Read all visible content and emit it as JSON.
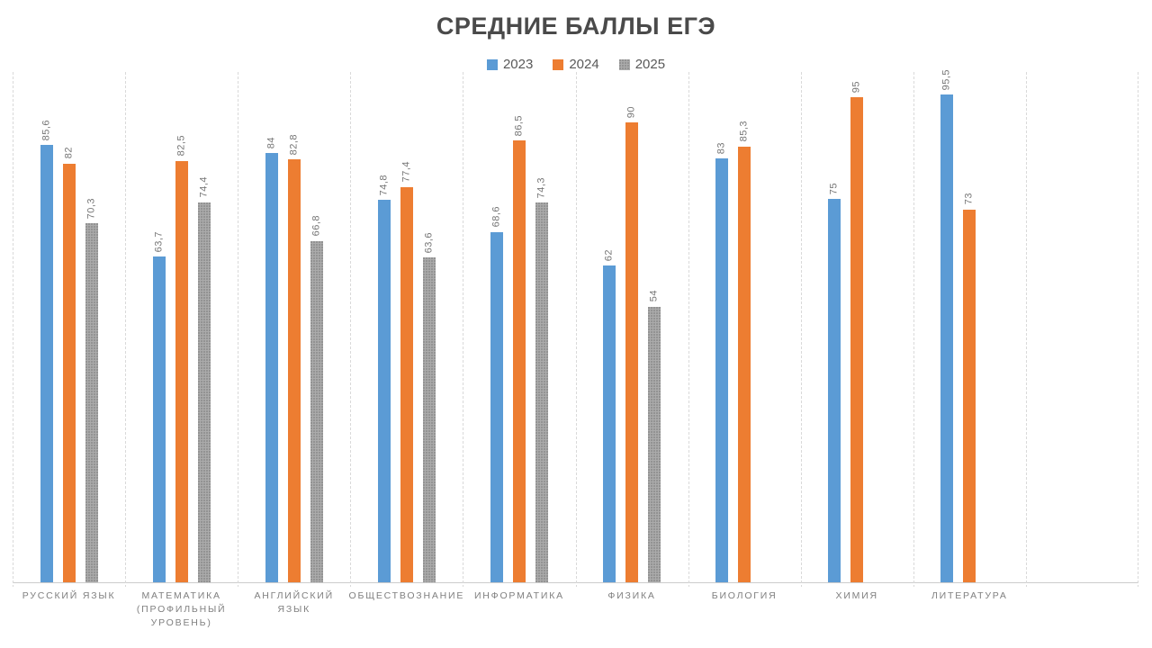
{
  "title": "СРЕДНИЕ БАЛЛЫ ЕГЭ",
  "legend": {
    "position": "top",
    "items": [
      "2023",
      "2024",
      "2025"
    ]
  },
  "colors": {
    "series_2023": "#5B9BD5",
    "series_2024": "#ED7D31",
    "series_2025": "#A5A5A5",
    "gridline": "#D9D9D9",
    "axis_line": "#CCCCCC",
    "title_text": "#4A4A4A",
    "value_label_text": "#767676",
    "category_label_text": "#808080"
  },
  "chart_data": {
    "type": "bar",
    "title": "СРЕДНИЕ БАЛЛЫ ЕГЭ",
    "xlabel": "",
    "ylabel": "",
    "ylim": [
      0,
      100
    ],
    "grid": "vertical-dashed",
    "legend_position": "top",
    "value_labels_shown": true,
    "value_label_decimal_separator": ",",
    "trailing_empty_slots": 1,
    "categories": [
      "РУССКИЙ ЯЗЫК",
      "МАТЕМАТИКА (ПРОФИЛЬНЫЙ УРОВЕНЬ)",
      "АНГЛИЙСКИЙ ЯЗЫК",
      "ОБЩЕСТВОЗНАНИЕ",
      "ИНФОРМАТИКА",
      "ФИЗИКА",
      "БИОЛОГИЯ",
      "ХИМИЯ",
      "ЛИТЕРАТУРА"
    ],
    "category_lines": [
      [
        "РУССКИЙ ЯЗЫК"
      ],
      [
        "МАТЕМАТИКА",
        "(ПРОФИЛЬНЫЙ",
        "УРОВЕНЬ)"
      ],
      [
        "АНГЛИЙСКИЙ",
        "ЯЗЫК"
      ],
      [
        "ОБЩЕСТВОЗНАНИЕ"
      ],
      [
        "ИНФОРМАТИКА"
      ],
      [
        "ФИЗИКА"
      ],
      [
        "БИОЛОГИЯ"
      ],
      [
        "ХИМИЯ"
      ],
      [
        "ЛИТЕРАТУРА"
      ]
    ],
    "series": [
      {
        "name": "2023",
        "color": "#5B9BD5",
        "pattern": false,
        "values": [
          85.6,
          63.7,
          84,
          74.8,
          68.6,
          62,
          83,
          75,
          95.5
        ]
      },
      {
        "name": "2024",
        "color": "#ED7D31",
        "pattern": false,
        "values": [
          82,
          82.5,
          82.8,
          77.4,
          86.5,
          90,
          85.3,
          95,
          73
        ]
      },
      {
        "name": "2025",
        "color": "#A5A5A5",
        "pattern": true,
        "values": [
          70.3,
          74.4,
          66.8,
          63.6,
          74.3,
          54,
          null,
          null,
          null
        ]
      }
    ]
  }
}
